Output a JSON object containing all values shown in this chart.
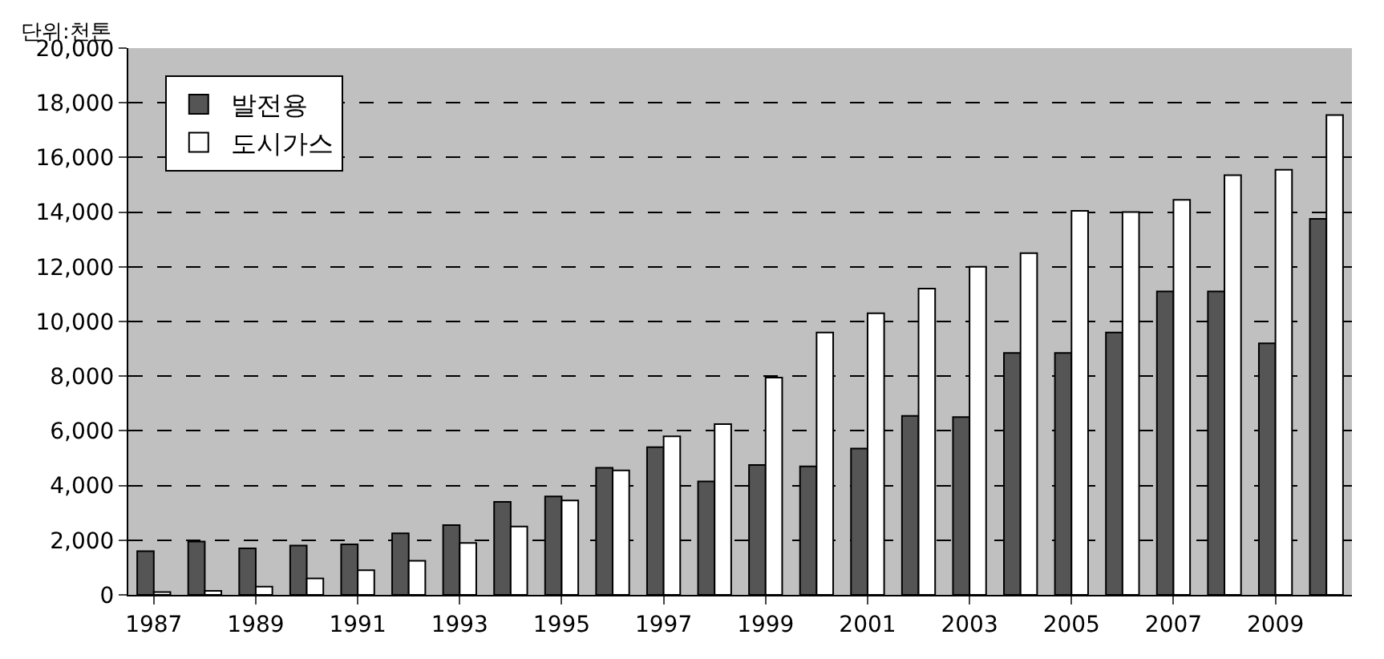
{
  "chart_data": {
    "type": "bar",
    "ylabel": "단위:천톤",
    "categories": [
      "1987",
      null,
      "1989",
      null,
      "1991",
      null,
      "1993",
      null,
      "1995",
      null,
      "1997",
      null,
      "1999",
      null,
      "2001",
      null,
      "2003",
      null,
      "2005",
      null,
      "2007",
      null,
      "2009",
      null
    ],
    "series": [
      {
        "name": "발전용",
        "color": "#555555",
        "values": [
          1600,
          1950,
          1700,
          1800,
          1850,
          2250,
          2550,
          3400,
          3600,
          4650,
          5400,
          4150,
          4750,
          4700,
          5350,
          6550,
          6500,
          8850,
          8850,
          9600,
          11100,
          11100,
          9200,
          13750
        ]
      },
      {
        "name": "도시가스",
        "color": "#ffffff",
        "values": [
          100,
          150,
          300,
          600,
          900,
          1250,
          1900,
          2500,
          3450,
          4550,
          5800,
          6250,
          7950,
          9600,
          10300,
          11200,
          12000,
          12500,
          14050,
          14000,
          14450,
          15350,
          15550,
          17550
        ]
      }
    ],
    "ylim": [
      0,
      20000
    ],
    "yticks": [
      {
        "value": 0,
        "label": "0"
      },
      {
        "value": 2000,
        "label": "2,000"
      },
      {
        "value": 4000,
        "label": "4,000"
      },
      {
        "value": 6000,
        "label": "6,000"
      },
      {
        "value": 8000,
        "label": "8,000"
      },
      {
        "value": 10000,
        "label": "10,000"
      },
      {
        "value": 12000,
        "label": "12,000"
      },
      {
        "value": 14000,
        "label": "14,000"
      },
      {
        "value": 16000,
        "label": "16,000"
      },
      {
        "value": 18000,
        "label": "18,000"
      },
      {
        "value": 20000,
        "label": "20,000"
      }
    ],
    "grid": "y",
    "legend": "top left"
  }
}
